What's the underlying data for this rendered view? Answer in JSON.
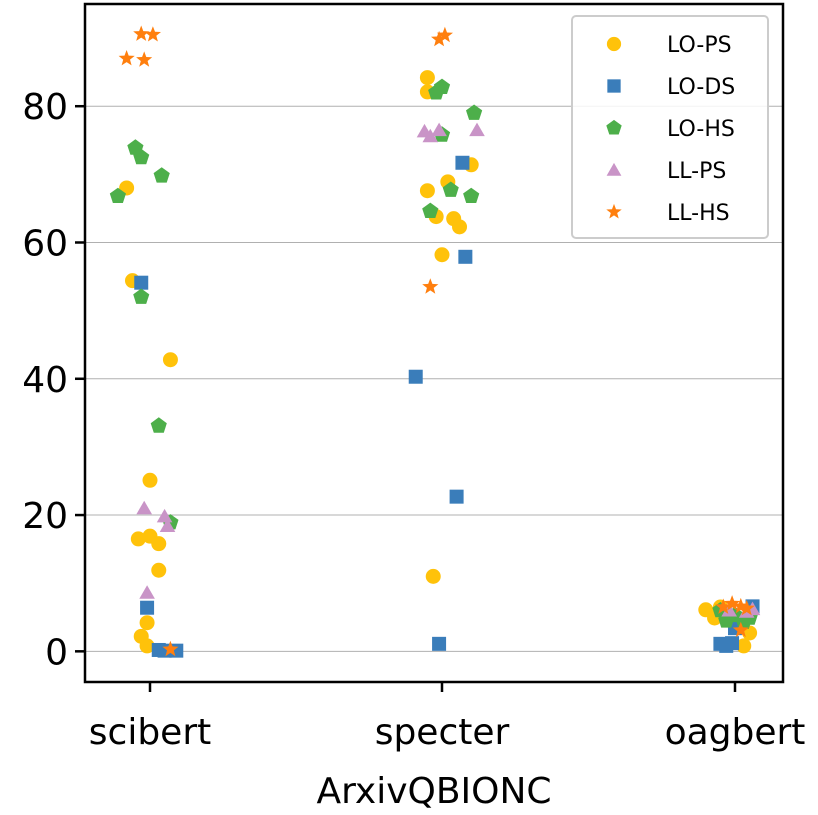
{
  "chart_data": {
    "type": "scatter",
    "title": "",
    "xlabel": "ArxivQBIONC",
    "ylabel": "",
    "categories": [
      "scibert",
      "specter",
      "oagbert"
    ],
    "ylim": [
      -4.5,
      95
    ],
    "yticks": [
      0,
      20,
      40,
      60,
      80
    ],
    "grid": "horizontal",
    "legend_position": "top-right",
    "series": [
      {
        "name": "LO-PS",
        "marker": "circle",
        "color": "#ffc20a",
        "points": [
          {
            "cat": 0,
            "jitter": -0.08,
            "y": 68.0
          },
          {
            "cat": 0,
            "jitter": -0.06,
            "y": 54.4
          },
          {
            "cat": 0,
            "jitter": 0.07,
            "y": 42.8
          },
          {
            "cat": 0,
            "jitter": 0.0,
            "y": 25.1
          },
          {
            "cat": 0,
            "jitter": -0.04,
            "y": 16.5
          },
          {
            "cat": 0,
            "jitter": 0.0,
            "y": 16.9
          },
          {
            "cat": 0,
            "jitter": 0.03,
            "y": 15.8
          },
          {
            "cat": 0,
            "jitter": 0.03,
            "y": 11.9
          },
          {
            "cat": 0,
            "jitter": -0.01,
            "y": 4.2
          },
          {
            "cat": 0,
            "jitter": -0.03,
            "y": 2.2
          },
          {
            "cat": 0,
            "jitter": -0.01,
            "y": 0.8
          },
          {
            "cat": 1,
            "jitter": -0.05,
            "y": 84.2
          },
          {
            "cat": 1,
            "jitter": -0.05,
            "y": 82.1
          },
          {
            "cat": 1,
            "jitter": -0.05,
            "y": 67.6
          },
          {
            "cat": 1,
            "jitter": 0.02,
            "y": 68.9
          },
          {
            "cat": 1,
            "jitter": -0.02,
            "y": 63.8
          },
          {
            "cat": 1,
            "jitter": 0.04,
            "y": 63.5
          },
          {
            "cat": 1,
            "jitter": 0.06,
            "y": 62.3
          },
          {
            "cat": 1,
            "jitter": 0.1,
            "y": 71.4
          },
          {
            "cat": 1,
            "jitter": 0.0,
            "y": 58.2
          },
          {
            "cat": 1,
            "jitter": -0.03,
            "y": 11.0
          },
          {
            "cat": 2,
            "jitter": -0.1,
            "y": 6.1
          },
          {
            "cat": 2,
            "jitter": -0.07,
            "y": 4.9
          },
          {
            "cat": 2,
            "jitter": -0.05,
            "y": 6.5
          },
          {
            "cat": 2,
            "jitter": 0.05,
            "y": 2.7
          },
          {
            "cat": 2,
            "jitter": 0.03,
            "y": 0.8
          }
        ]
      },
      {
        "name": "LO-DS",
        "marker": "square",
        "color": "#3a7dba",
        "points": [
          {
            "cat": 0,
            "jitter": -0.03,
            "y": 54.1
          },
          {
            "cat": 0,
            "jitter": -0.01,
            "y": 6.4
          },
          {
            "cat": 0,
            "jitter": 0.03,
            "y": 0.2
          },
          {
            "cat": 0,
            "jitter": 0.05,
            "y": 0.1
          },
          {
            "cat": 0,
            "jitter": 0.09,
            "y": 0.1
          },
          {
            "cat": 1,
            "jitter": 0.07,
            "y": 71.7
          },
          {
            "cat": 1,
            "jitter": 0.08,
            "y": 57.9
          },
          {
            "cat": 1,
            "jitter": -0.09,
            "y": 40.3
          },
          {
            "cat": 1,
            "jitter": 0.05,
            "y": 22.7
          },
          {
            "cat": 1,
            "jitter": -0.01,
            "y": 1.1
          },
          {
            "cat": 2,
            "jitter": -0.05,
            "y": 1.1
          },
          {
            "cat": 2,
            "jitter": -0.03,
            "y": 0.8
          },
          {
            "cat": 2,
            "jitter": -0.01,
            "y": 1.2
          },
          {
            "cat": 2,
            "jitter": 0.0,
            "y": 3.4
          },
          {
            "cat": 2,
            "jitter": 0.06,
            "y": 6.6
          }
        ]
      },
      {
        "name": "LO-HS",
        "marker": "pentagon",
        "color": "#4daf4a",
        "points": [
          {
            "cat": 0,
            "jitter": -0.05,
            "y": 73.9
          },
          {
            "cat": 0,
            "jitter": -0.03,
            "y": 72.5
          },
          {
            "cat": 0,
            "jitter": 0.04,
            "y": 69.8
          },
          {
            "cat": 0,
            "jitter": -0.11,
            "y": 66.8
          },
          {
            "cat": 0,
            "jitter": -0.03,
            "y": 52.0
          },
          {
            "cat": 0,
            "jitter": 0.03,
            "y": 33.1
          },
          {
            "cat": 0,
            "jitter": 0.07,
            "y": 18.9
          },
          {
            "cat": 1,
            "jitter": 0.0,
            "y": 82.8
          },
          {
            "cat": 1,
            "jitter": -0.02,
            "y": 82.0
          },
          {
            "cat": 1,
            "jitter": 0.11,
            "y": 79.0
          },
          {
            "cat": 1,
            "jitter": 0.0,
            "y": 75.8
          },
          {
            "cat": 1,
            "jitter": 0.03,
            "y": 67.7
          },
          {
            "cat": 1,
            "jitter": 0.1,
            "y": 66.8
          },
          {
            "cat": 1,
            "jitter": -0.04,
            "y": 64.6
          },
          {
            "cat": 2,
            "jitter": -0.05,
            "y": 6.0
          },
          {
            "cat": 2,
            "jitter": -0.03,
            "y": 4.5
          },
          {
            "cat": 2,
            "jitter": 0.0,
            "y": 5.3
          },
          {
            "cat": 2,
            "jitter": 0.03,
            "y": 4.3
          },
          {
            "cat": 2,
            "jitter": 0.05,
            "y": 4.9
          }
        ]
      },
      {
        "name": "LL-PS",
        "marker": "triangle",
        "color": "#c994c7",
        "points": [
          {
            "cat": 0,
            "jitter": -0.02,
            "y": 21.0
          },
          {
            "cat": 0,
            "jitter": 0.05,
            "y": 19.8
          },
          {
            "cat": 0,
            "jitter": 0.06,
            "y": 18.4
          },
          {
            "cat": 0,
            "jitter": -0.01,
            "y": 8.6
          },
          {
            "cat": 1,
            "jitter": -0.06,
            "y": 76.3
          },
          {
            "cat": 1,
            "jitter": -0.04,
            "y": 75.6
          },
          {
            "cat": 1,
            "jitter": -0.01,
            "y": 76.5
          },
          {
            "cat": 1,
            "jitter": 0.12,
            "y": 76.5
          },
          {
            "cat": 2,
            "jitter": -0.02,
            "y": 6.0
          },
          {
            "cat": 2,
            "jitter": 0.04,
            "y": 5.8
          },
          {
            "cat": 2,
            "jitter": 0.06,
            "y": 6.2
          }
        ]
      },
      {
        "name": "LL-HS",
        "marker": "star",
        "color": "#ff7f0e",
        "points": [
          {
            "cat": 0,
            "jitter": -0.03,
            "y": 90.6
          },
          {
            "cat": 0,
            "jitter": 0.01,
            "y": 90.5
          },
          {
            "cat": 0,
            "jitter": -0.08,
            "y": 87.0
          },
          {
            "cat": 0,
            "jitter": -0.02,
            "y": 86.8
          },
          {
            "cat": 0,
            "jitter": 0.07,
            "y": 0.3
          },
          {
            "cat": 1,
            "jitter": 0.01,
            "y": 90.4
          },
          {
            "cat": 1,
            "jitter": -0.01,
            "y": 89.8
          },
          {
            "cat": 1,
            "jitter": -0.04,
            "y": 53.5
          },
          {
            "cat": 2,
            "jitter": -0.04,
            "y": 6.5
          },
          {
            "cat": 2,
            "jitter": -0.01,
            "y": 7.0
          },
          {
            "cat": 2,
            "jitter": 0.02,
            "y": 6.6
          },
          {
            "cat": 2,
            "jitter": 0.04,
            "y": 6.3
          },
          {
            "cat": 2,
            "jitter": 0.02,
            "y": 3.1
          }
        ]
      }
    ]
  }
}
